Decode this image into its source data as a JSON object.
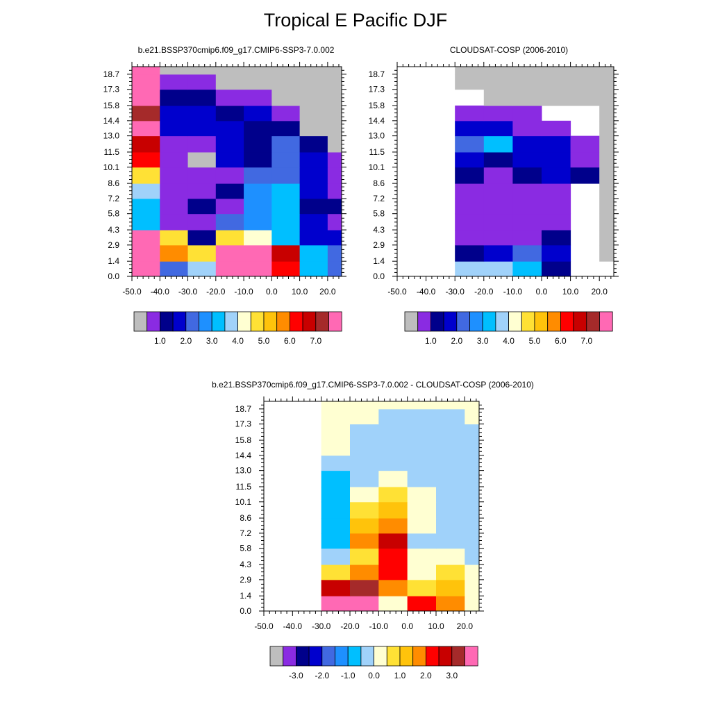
{
  "figure": {
    "title": "Tropical E Pacific DJF"
  },
  "colors": {
    "abs": [
      "#bebebe",
      "#8a2be2",
      "#00008b",
      "#0000cd",
      "#4169e1",
      "#1e90ff",
      "#00bfff",
      "#a0d2fa",
      "#ffffd2",
      "#ffe135",
      "#ffc30b",
      "#ff8c00",
      "#ff0000",
      "#c80000",
      "#a52a2a",
      "#ff69b4"
    ],
    "diff": [
      "#bebebe",
      "#8a2be2",
      "#00008b",
      "#0000cd",
      "#4169e1",
      "#1e90ff",
      "#00bfff",
      "#a0d2fa",
      "#ffffd2",
      "#ffe135",
      "#ffc30b",
      "#ff8c00",
      "#ff0000",
      "#c80000",
      "#a52a2a",
      "#ff69b4"
    ]
  },
  "chart_data": [
    {
      "type": "heatmap",
      "title": "b.e21.BSSP370cmip6.f09_g17.CMIP6-SSP3-7.0.002",
      "xticks": [
        "-50.0",
        "-40.0",
        "-30.0",
        "-20.0",
        "-10.0",
        "0.0",
        "10.0",
        "20.0"
      ],
      "yticks": [
        "0.0",
        "1.4",
        "2.9",
        "4.3",
        "5.8",
        "7.2",
        "8.6",
        "10.1",
        "11.5",
        "13.0",
        "14.4",
        "15.8",
        "17.3",
        "18.7"
      ],
      "colorbar": {
        "labels": [
          "1.0",
          "2.0",
          "3.0",
          "4.0",
          "5.0",
          "6.0",
          "7.0"
        ],
        "label_after": [
          2,
          4,
          6,
          8,
          10,
          12,
          14
        ]
      },
      "x_edges": [
        -50,
        -40,
        -30,
        -20,
        -10,
        0,
        10,
        20,
        25
      ],
      "y_edges": [
        0,
        1.4,
        2.9,
        4.3,
        5.8,
        7.2,
        8.6,
        10.1,
        11.5,
        13.0,
        14.4,
        15.8,
        17.3,
        18.7,
        19.4
      ],
      "rows": [
        [
          15,
          4,
          7,
          15,
          15,
          12,
          6,
          4,
          0
        ],
        [
          15,
          11,
          9,
          15,
          15,
          13,
          6,
          4,
          0
        ],
        [
          15,
          9,
          2,
          9,
          8,
          6,
          3,
          3,
          0
        ],
        [
          6,
          1,
          1,
          4,
          5,
          6,
          3,
          1,
          0
        ],
        [
          6,
          1,
          2,
          1,
          5,
          6,
          2,
          2,
          0
        ],
        [
          7,
          1,
          1,
          2,
          5,
          6,
          3,
          1,
          0
        ],
        [
          9,
          1,
          1,
          1,
          4,
          4,
          3,
          1,
          0
        ],
        [
          12,
          1,
          0,
          3,
          2,
          4,
          3,
          1,
          0
        ],
        [
          13,
          1,
          1,
          3,
          2,
          4,
          2,
          0,
          0
        ],
        [
          15,
          3,
          3,
          3,
          2,
          2,
          0,
          0,
          0
        ],
        [
          14,
          3,
          3,
          2,
          3,
          1,
          0,
          0,
          0
        ],
        [
          15,
          2,
          2,
          1,
          1,
          0,
          0,
          0,
          0
        ],
        [
          15,
          1,
          1,
          0,
          0,
          0,
          0,
          0,
          0
        ],
        [
          15,
          0,
          0,
          0,
          0,
          0,
          0,
          0,
          0
        ],
        [
          3,
          0,
          0,
          0,
          0,
          0,
          0,
          0,
          0
        ]
      ]
    },
    {
      "type": "heatmap",
      "title": "CLOUDSAT-COSP (2006-2010)",
      "xticks": [
        "-50.0",
        "-40.0",
        "-30.0",
        "-20.0",
        "-10.0",
        "0.0",
        "10.0",
        "20.0"
      ],
      "yticks": [
        "0.0",
        "1.4",
        "2.9",
        "4.3",
        "5.8",
        "7.2",
        "8.6",
        "10.1",
        "11.5",
        "13.0",
        "14.4",
        "15.8",
        "17.3",
        "18.7"
      ],
      "colorbar": {
        "labels": [
          "1.0",
          "2.0",
          "3.0",
          "4.0",
          "5.0",
          "6.0",
          "7.0"
        ],
        "label_after": [
          2,
          4,
          6,
          8,
          10,
          12,
          14
        ]
      },
      "x_edges": [
        -50,
        -40,
        -30,
        -20,
        -10,
        0,
        10,
        20,
        25
      ],
      "y_edges": [
        0,
        1.4,
        2.9,
        4.3,
        5.8,
        7.2,
        8.6,
        10.1,
        11.5,
        13.0,
        14.4,
        15.8,
        17.3,
        18.7,
        19.4
      ],
      "rows": [
        [
          -1,
          -1,
          7,
          7,
          6,
          2,
          -1,
          -1,
          -1
        ],
        [
          -1,
          -1,
          2,
          3,
          4,
          3,
          -1,
          0,
          0
        ],
        [
          -1,
          -1,
          1,
          1,
          1,
          2,
          -1,
          0,
          0
        ],
        [
          -1,
          -1,
          1,
          1,
          1,
          1,
          -1,
          0,
          0
        ],
        [
          -1,
          -1,
          1,
          1,
          1,
          1,
          -1,
          0,
          0
        ],
        [
          -1,
          -1,
          1,
          1,
          1,
          1,
          -1,
          0,
          0
        ],
        [
          -1,
          -1,
          2,
          1,
          2,
          3,
          2,
          0,
          0
        ],
        [
          -1,
          -1,
          3,
          2,
          3,
          3,
          1,
          0,
          0
        ],
        [
          -1,
          -1,
          4,
          6,
          3,
          3,
          1,
          0,
          0
        ],
        [
          -1,
          -1,
          3,
          3,
          1,
          1,
          -1,
          0,
          0
        ],
        [
          -1,
          -1,
          1,
          1,
          1,
          -1,
          -1,
          0,
          0
        ],
        [
          -1,
          -1,
          -1,
          0,
          0,
          0,
          0,
          0,
          0
        ],
        [
          -1,
          -1,
          0,
          0,
          0,
          0,
          0,
          0,
          0
        ],
        [
          -1,
          -1,
          0,
          0,
          0,
          0,
          0,
          0,
          0
        ],
        [
          -1,
          -1,
          0,
          0,
          0,
          0,
          0,
          0,
          0
        ]
      ]
    },
    {
      "type": "heatmap",
      "title": "b.e21.BSSP370cmip6.f09_g17.CMIP6-SSP3-7.0.002 - CLOUDSAT-COSP (2006-2010)",
      "xticks": [
        "-50.0",
        "-40.0",
        "-30.0",
        "-20.0",
        "-10.0",
        "0.0",
        "10.0",
        "20.0"
      ],
      "yticks": [
        "0.0",
        "1.4",
        "2.9",
        "4.3",
        "5.8",
        "7.2",
        "8.6",
        "10.1",
        "11.5",
        "13.0",
        "14.4",
        "15.8",
        "17.3",
        "18.7"
      ],
      "colorbar": {
        "labels": [
          "-3.0",
          "-2.0",
          "-1.0",
          "0.0",
          "1.0",
          "2.0",
          "3.0"
        ],
        "label_after": [
          2,
          4,
          6,
          8,
          10,
          12,
          14
        ]
      },
      "x_edges": [
        -50,
        -40,
        -30,
        -20,
        -10,
        0,
        10,
        20,
        25
      ],
      "y_edges": [
        0,
        1.4,
        2.9,
        4.3,
        5.8,
        7.2,
        8.6,
        10.1,
        11.5,
        13.0,
        14.4,
        15.8,
        17.3,
        18.7,
        19.4
      ],
      "rows": [
        [
          -1,
          -1,
          15,
          15,
          8,
          12,
          11,
          8,
          7
        ],
        [
          -1,
          -1,
          13,
          14,
          11,
          9,
          10,
          8,
          7
        ],
        [
          -1,
          -1,
          9,
          11,
          12,
          8,
          9,
          8,
          8
        ],
        [
          -1,
          -1,
          7,
          9,
          12,
          8,
          8,
          7,
          8
        ],
        [
          -1,
          -1,
          6,
          11,
          13,
          7,
          7,
          7,
          8
        ],
        [
          -1,
          -1,
          6,
          10,
          11,
          8,
          7,
          7,
          8
        ],
        [
          -1,
          -1,
          6,
          9,
          10,
          8,
          7,
          7,
          8
        ],
        [
          -1,
          -1,
          6,
          8,
          9,
          8,
          7,
          7,
          8
        ],
        [
          -1,
          -1,
          6,
          7,
          8,
          7,
          7,
          7,
          8
        ],
        [
          -1,
          -1,
          7,
          7,
          7,
          7,
          7,
          7,
          8
        ],
        [
          -1,
          -1,
          8,
          7,
          7,
          7,
          7,
          7,
          8
        ],
        [
          -1,
          -1,
          8,
          7,
          7,
          7,
          7,
          7,
          8
        ],
        [
          -1,
          -1,
          8,
          8,
          7,
          7,
          7,
          8,
          8
        ],
        [
          -1,
          -1,
          8,
          8,
          8,
          8,
          8,
          8,
          8
        ],
        [
          -1,
          -1,
          7,
          8,
          8,
          8,
          8,
          8,
          8
        ]
      ]
    }
  ]
}
